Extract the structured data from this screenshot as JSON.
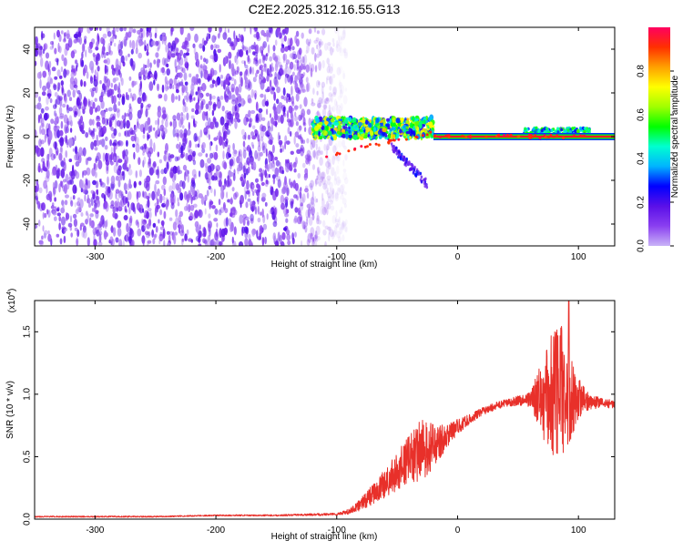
{
  "title": "C2E2.2025.312.16.55.G13",
  "colors": {
    "snr_line": "#e8302a",
    "background": "#ffffff",
    "axis": "#000000",
    "colorbar_stops": [
      "#c9b3f7",
      "#8a3ff0",
      "#5a10e8",
      "#0000ff",
      "#00b4ff",
      "#00ffd0",
      "#00ff00",
      "#a0ff00",
      "#ffff00",
      "#ffa000",
      "#ff3000",
      "#ff0060"
    ]
  },
  "chart_data": [
    {
      "type": "heatmap",
      "title": "C2E2.2025.312.16.55.G13",
      "xlabel": "Height of straight line (km)",
      "ylabel": "Frequency (Hz)",
      "xlim": [
        -350,
        130
      ],
      "ylim": [
        -50,
        50
      ],
      "xticks": [
        -300,
        -200,
        -100,
        0,
        100
      ],
      "xtick_labels": [
        "-300",
        "-200",
        "-100",
        "0",
        "100"
      ],
      "yticks": [
        -40,
        -20,
        0,
        20,
        40
      ],
      "ytick_labels": [
        "-40",
        "-20",
        "0",
        "20",
        "40"
      ],
      "colorbar": {
        "label": "Normalized spectral amplitude",
        "range": [
          0.0,
          1.0
        ],
        "ticks": [
          0.0,
          0.2,
          0.4,
          0.6,
          0.8
        ],
        "tick_labels": [
          "0.0",
          "0.2",
          "0.4",
          "0.6",
          "0.8"
        ]
      },
      "features": {
        "noise_band_x_range": [
          -350,
          -100
        ],
        "noise_amplitude_approx": 0.1,
        "signal_line_frequency_hz": 0,
        "signal_line_x_range": [
          -20,
          130
        ],
        "signal_line_amplitude": 1.0,
        "transition_x_range": [
          -120,
          -20
        ],
        "transition_amplitude_range": [
          0.2,
          0.8
        ],
        "downward_tail_to_hz": -23,
        "downward_tail_x": -30
      }
    },
    {
      "type": "line",
      "xlabel": "Height of straight line (km)",
      "ylabel": "SNR (10 * v/v)",
      "y_multiplier_label": "(x10",
      "y_multiplier_exponent": "4",
      "y_multiplier_close": ")",
      "xlim": [
        -350,
        130
      ],
      "ylim": [
        0,
        1.75
      ],
      "xticks": [
        -300,
        -200,
        -100,
        0,
        100
      ],
      "xtick_labels": [
        "-300",
        "-200",
        "-100",
        "0",
        "100"
      ],
      "yticks": [
        0.0,
        0.5,
        1.0,
        1.5
      ],
      "ytick_labels": [
        "0.0",
        "0.5",
        "1.0",
        "1.5"
      ],
      "series": [
        {
          "name": "SNR",
          "x": [
            -350,
            -300,
            -250,
            -200,
            -150,
            -100,
            -90,
            -80,
            -70,
            -60,
            -50,
            -40,
            -30,
            -20,
            -10,
            0,
            10,
            20,
            30,
            40,
            50,
            60,
            70,
            75,
            80,
            85,
            90,
            95,
            100,
            105,
            110,
            120,
            130
          ],
          "values": [
            0.02,
            0.02,
            0.02,
            0.03,
            0.03,
            0.04,
            0.06,
            0.12,
            0.2,
            0.28,
            0.38,
            0.48,
            0.55,
            0.58,
            0.66,
            0.74,
            0.8,
            0.86,
            0.9,
            0.93,
            0.95,
            0.96,
            0.97,
            0.98,
            1.0,
            1.05,
            1.0,
            0.97,
            0.96,
            0.95,
            0.94,
            0.93,
            0.92
          ],
          "noise_amplitude": [
            0.005,
            0.005,
            0.005,
            0.005,
            0.006,
            0.01,
            0.02,
            0.05,
            0.08,
            0.12,
            0.15,
            0.2,
            0.25,
            0.18,
            0.1,
            0.06,
            0.04,
            0.03,
            0.03,
            0.03,
            0.04,
            0.06,
            0.3,
            0.45,
            0.55,
            0.6,
            0.45,
            0.3,
            0.18,
            0.1,
            0.06,
            0.04,
            0.03
          ],
          "peak": {
            "x": 92,
            "value": 1.75
          }
        }
      ]
    }
  ]
}
